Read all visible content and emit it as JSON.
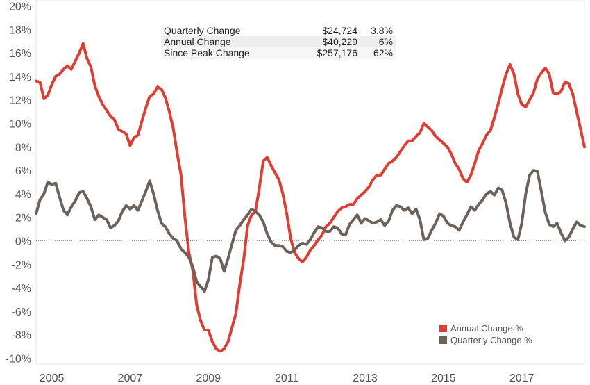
{
  "chart_data": {
    "type": "line",
    "title": "",
    "xlabel": "",
    "ylabel": "",
    "xlim": [
      2004.6,
      2018.6
    ],
    "ylim": [
      -10.5,
      20.5
    ],
    "x_ticks": [
      2005,
      2007,
      2009,
      2011,
      2013,
      2015,
      2017
    ],
    "x_tick_labels": [
      "2005",
      "2007",
      "2009",
      "2011",
      "2013",
      "2015",
      "2017"
    ],
    "y_ticks": [
      -10,
      -8,
      -6,
      -4,
      -2,
      0,
      2,
      4,
      6,
      8,
      10,
      12,
      14,
      16,
      18,
      20
    ],
    "y_tick_labels": [
      "-10%",
      "-8%",
      "-6%",
      "-4%",
      "-2%",
      "0%",
      "2%",
      "4%",
      "6%",
      "8%",
      "10%",
      "12%",
      "14%",
      "16%",
      "18%",
      "20%"
    ],
    "grid": false,
    "zero_line": true,
    "legend_position": "bottom-right",
    "summary_table": [
      {
        "label": "Quarterly Change",
        "value": "$24,724",
        "pct": "3.8%"
      },
      {
        "label": "Annual Change",
        "value": "$40,229",
        "pct": "6%"
      },
      {
        "label": "Since Peak Change",
        "value": "$257,176",
        "pct": "62%"
      }
    ],
    "series": [
      {
        "name": "Annual Change %",
        "color": "#e03c31",
        "points": [
          [
            2004.6,
            13.6
          ],
          [
            2004.7,
            13.5
          ],
          [
            2004.8,
            12.1
          ],
          [
            2004.9,
            12.4
          ],
          [
            2005.0,
            13.3
          ],
          [
            2005.1,
            14.0
          ],
          [
            2005.2,
            14.2
          ],
          [
            2005.3,
            14.6
          ],
          [
            2005.4,
            14.9
          ],
          [
            2005.5,
            14.6
          ],
          [
            2005.6,
            15.3
          ],
          [
            2005.7,
            16.0
          ],
          [
            2005.8,
            16.8
          ],
          [
            2005.9,
            15.5
          ],
          [
            2006.0,
            14.8
          ],
          [
            2006.1,
            13.2
          ],
          [
            2006.2,
            12.3
          ],
          [
            2006.3,
            11.6
          ],
          [
            2006.4,
            11.1
          ],
          [
            2006.5,
            10.6
          ],
          [
            2006.6,
            10.3
          ],
          [
            2006.7,
            9.5
          ],
          [
            2006.8,
            9.3
          ],
          [
            2006.9,
            9.1
          ],
          [
            2007.0,
            8.1
          ],
          [
            2007.1,
            8.8
          ],
          [
            2007.2,
            9.0
          ],
          [
            2007.3,
            10.2
          ],
          [
            2007.4,
            11.3
          ],
          [
            2007.5,
            12.3
          ],
          [
            2007.6,
            12.5
          ],
          [
            2007.7,
            13.1
          ],
          [
            2007.8,
            12.9
          ],
          [
            2007.9,
            12.2
          ],
          [
            2008.0,
            11.0
          ],
          [
            2008.1,
            9.6
          ],
          [
            2008.2,
            7.5
          ],
          [
            2008.3,
            5.6
          ],
          [
            2008.4,
            2.0
          ],
          [
            2008.5,
            -1.0
          ],
          [
            2008.6,
            -2.5
          ],
          [
            2008.7,
            -5.5
          ],
          [
            2008.8,
            -6.8
          ],
          [
            2008.9,
            -7.6
          ],
          [
            2009.0,
            -7.6
          ],
          [
            2009.1,
            -8.6
          ],
          [
            2009.2,
            -9.2
          ],
          [
            2009.3,
            -9.4
          ],
          [
            2009.4,
            -9.2
          ],
          [
            2009.5,
            -8.6
          ],
          [
            2009.6,
            -7.4
          ],
          [
            2009.7,
            -6.2
          ],
          [
            2009.8,
            -3.7
          ],
          [
            2009.9,
            -1.6
          ],
          [
            2010.0,
            1.3
          ],
          [
            2010.1,
            2.2
          ],
          [
            2010.2,
            2.5
          ],
          [
            2010.3,
            4.5
          ],
          [
            2010.4,
            6.8
          ],
          [
            2010.5,
            7.1
          ],
          [
            2010.6,
            6.4
          ],
          [
            2010.7,
            5.8
          ],
          [
            2010.8,
            5.2
          ],
          [
            2010.9,
            4.0
          ],
          [
            2011.0,
            2.3
          ],
          [
            2011.1,
            0.2
          ],
          [
            2011.2,
            -1.0
          ],
          [
            2011.3,
            -1.5
          ],
          [
            2011.4,
            -1.8
          ],
          [
            2011.5,
            -1.4
          ],
          [
            2011.6,
            -0.8
          ],
          [
            2011.7,
            -0.4
          ],
          [
            2011.8,
            0.1
          ],
          [
            2011.9,
            0.5
          ],
          [
            2012.0,
            1.2
          ],
          [
            2012.1,
            1.5
          ],
          [
            2012.2,
            2.0
          ],
          [
            2012.3,
            2.5
          ],
          [
            2012.4,
            2.8
          ],
          [
            2012.5,
            2.9
          ],
          [
            2012.6,
            3.1
          ],
          [
            2012.7,
            3.1
          ],
          [
            2012.8,
            3.6
          ],
          [
            2012.9,
            3.9
          ],
          [
            2013.0,
            4.2
          ],
          [
            2013.1,
            4.6
          ],
          [
            2013.2,
            5.2
          ],
          [
            2013.3,
            5.6
          ],
          [
            2013.4,
            5.6
          ],
          [
            2013.5,
            6.1
          ],
          [
            2013.6,
            6.6
          ],
          [
            2013.7,
            6.8
          ],
          [
            2013.8,
            7.1
          ],
          [
            2013.9,
            7.6
          ],
          [
            2014.0,
            8.1
          ],
          [
            2014.1,
            8.5
          ],
          [
            2014.2,
            8.5
          ],
          [
            2014.3,
            8.9
          ],
          [
            2014.4,
            9.2
          ],
          [
            2014.5,
            10.0
          ],
          [
            2014.6,
            9.7
          ],
          [
            2014.7,
            9.4
          ],
          [
            2014.8,
            8.9
          ],
          [
            2014.9,
            8.6
          ],
          [
            2015.0,
            8.3
          ],
          [
            2015.1,
            8.0
          ],
          [
            2015.2,
            7.4
          ],
          [
            2015.3,
            6.6
          ],
          [
            2015.4,
            6.1
          ],
          [
            2015.5,
            5.3
          ],
          [
            2015.6,
            5.0
          ],
          [
            2015.7,
            5.6
          ],
          [
            2015.8,
            6.6
          ],
          [
            2015.9,
            7.7
          ],
          [
            2016.0,
            8.3
          ],
          [
            2016.1,
            9.0
          ],
          [
            2016.2,
            9.4
          ],
          [
            2016.3,
            10.5
          ],
          [
            2016.4,
            11.7
          ],
          [
            2016.5,
            13.0
          ],
          [
            2016.6,
            14.2
          ],
          [
            2016.7,
            15.0
          ],
          [
            2016.8,
            14.2
          ],
          [
            2016.9,
            12.5
          ],
          [
            2017.0,
            11.6
          ],
          [
            2017.1,
            11.4
          ],
          [
            2017.2,
            12.0
          ],
          [
            2017.3,
            12.6
          ],
          [
            2017.4,
            13.8
          ],
          [
            2017.5,
            14.3
          ],
          [
            2017.6,
            14.7
          ],
          [
            2017.7,
            14.2
          ],
          [
            2017.8,
            12.6
          ],
          [
            2017.9,
            12.5
          ],
          [
            2018.0,
            12.7
          ],
          [
            2018.1,
            13.5
          ],
          [
            2018.2,
            13.4
          ],
          [
            2018.3,
            12.5
          ],
          [
            2018.4,
            11.0
          ],
          [
            2018.5,
            9.5
          ],
          [
            2018.6,
            8.0
          ]
        ]
      },
      {
        "name": "Quarterly Change %",
        "color": "#6b625c",
        "points": [
          [
            2004.6,
            2.3
          ],
          [
            2004.7,
            3.5
          ],
          [
            2004.8,
            4.0
          ],
          [
            2004.9,
            5.0
          ],
          [
            2005.0,
            4.8
          ],
          [
            2005.1,
            4.9
          ],
          [
            2005.2,
            3.7
          ],
          [
            2005.3,
            2.6
          ],
          [
            2005.4,
            2.2
          ],
          [
            2005.5,
            2.9
          ],
          [
            2005.6,
            3.4
          ],
          [
            2005.7,
            4.1
          ],
          [
            2005.8,
            4.2
          ],
          [
            2005.9,
            3.6
          ],
          [
            2006.0,
            2.9
          ],
          [
            2006.1,
            1.8
          ],
          [
            2006.2,
            2.2
          ],
          [
            2006.3,
            2.0
          ],
          [
            2006.4,
            1.8
          ],
          [
            2006.5,
            1.1
          ],
          [
            2006.6,
            1.3
          ],
          [
            2006.7,
            1.7
          ],
          [
            2006.8,
            2.5
          ],
          [
            2006.9,
            3.0
          ],
          [
            2007.0,
            2.7
          ],
          [
            2007.1,
            3.0
          ],
          [
            2007.2,
            2.6
          ],
          [
            2007.3,
            3.4
          ],
          [
            2007.4,
            4.2
          ],
          [
            2007.5,
            5.1
          ],
          [
            2007.6,
            4.0
          ],
          [
            2007.7,
            2.6
          ],
          [
            2007.8,
            1.5
          ],
          [
            2007.9,
            1.2
          ],
          [
            2008.0,
            0.6
          ],
          [
            2008.1,
            0.2
          ],
          [
            2008.2,
            0.0
          ],
          [
            2008.3,
            -0.7
          ],
          [
            2008.4,
            -1.0
          ],
          [
            2008.5,
            -1.4
          ],
          [
            2008.6,
            -2.2
          ],
          [
            2008.7,
            -3.5
          ],
          [
            2008.8,
            -3.9
          ],
          [
            2008.9,
            -4.3
          ],
          [
            2009.0,
            -3.3
          ],
          [
            2009.1,
            -1.4
          ],
          [
            2009.2,
            -1.3
          ],
          [
            2009.3,
            -1.5
          ],
          [
            2009.4,
            -2.6
          ],
          [
            2009.5,
            -1.5
          ],
          [
            2009.6,
            -0.3
          ],
          [
            2009.7,
            0.9
          ],
          [
            2009.8,
            1.3
          ],
          [
            2009.9,
            1.8
          ],
          [
            2010.0,
            2.2
          ],
          [
            2010.1,
            2.7
          ],
          [
            2010.2,
            2.5
          ],
          [
            2010.3,
            2.2
          ],
          [
            2010.4,
            1.6
          ],
          [
            2010.5,
            0.6
          ],
          [
            2010.6,
            -0.1
          ],
          [
            2010.7,
            -0.4
          ],
          [
            2010.8,
            -0.4
          ],
          [
            2010.9,
            -0.5
          ],
          [
            2011.0,
            -0.9
          ],
          [
            2011.1,
            -1.0
          ],
          [
            2011.2,
            -0.8
          ],
          [
            2011.3,
            -0.4
          ],
          [
            2011.4,
            -0.2
          ],
          [
            2011.5,
            -0.3
          ],
          [
            2011.6,
            0.1
          ],
          [
            2011.7,
            0.7
          ],
          [
            2011.8,
            1.2
          ],
          [
            2011.9,
            1.1
          ],
          [
            2012.0,
            0.8
          ],
          [
            2012.1,
            0.8
          ],
          [
            2012.2,
            1.2
          ],
          [
            2012.3,
            1.1
          ],
          [
            2012.4,
            0.6
          ],
          [
            2012.5,
            0.5
          ],
          [
            2012.6,
            1.4
          ],
          [
            2012.7,
            1.8
          ],
          [
            2012.8,
            2.2
          ],
          [
            2012.9,
            1.5
          ],
          [
            2013.0,
            1.9
          ],
          [
            2013.1,
            1.7
          ],
          [
            2013.2,
            1.5
          ],
          [
            2013.3,
            1.6
          ],
          [
            2013.4,
            1.8
          ],
          [
            2013.5,
            1.3
          ],
          [
            2013.6,
            1.7
          ],
          [
            2013.7,
            2.6
          ],
          [
            2013.8,
            3.0
          ],
          [
            2013.9,
            2.9
          ],
          [
            2014.0,
            2.6
          ],
          [
            2014.1,
            2.8
          ],
          [
            2014.2,
            2.3
          ],
          [
            2014.3,
            2.7
          ],
          [
            2014.4,
            1.8
          ],
          [
            2014.5,
            0.1
          ],
          [
            2014.6,
            0.2
          ],
          [
            2014.7,
            0.9
          ],
          [
            2014.8,
            1.5
          ],
          [
            2014.9,
            2.3
          ],
          [
            2015.0,
            2.1
          ],
          [
            2015.1,
            1.5
          ],
          [
            2015.2,
            1.3
          ],
          [
            2015.3,
            1.2
          ],
          [
            2015.4,
            0.9
          ],
          [
            2015.5,
            1.6
          ],
          [
            2015.6,
            2.2
          ],
          [
            2015.7,
            2.9
          ],
          [
            2015.8,
            2.6
          ],
          [
            2015.9,
            3.1
          ],
          [
            2016.0,
            3.5
          ],
          [
            2016.1,
            4.0
          ],
          [
            2016.2,
            4.2
          ],
          [
            2016.3,
            3.9
          ],
          [
            2016.4,
            4.5
          ],
          [
            2016.5,
            4.3
          ],
          [
            2016.6,
            3.2
          ],
          [
            2016.7,
            1.5
          ],
          [
            2016.8,
            0.3
          ],
          [
            2016.9,
            0.1
          ],
          [
            2017.0,
            1.5
          ],
          [
            2017.1,
            4.0
          ],
          [
            2017.2,
            5.6
          ],
          [
            2017.3,
            6.0
          ],
          [
            2017.4,
            5.9
          ],
          [
            2017.5,
            4.2
          ],
          [
            2017.6,
            2.4
          ],
          [
            2017.7,
            1.4
          ],
          [
            2017.8,
            1.2
          ],
          [
            2017.9,
            1.5
          ],
          [
            2018.0,
            0.7
          ],
          [
            2018.1,
            0.0
          ],
          [
            2018.2,
            0.3
          ],
          [
            2018.3,
            1.0
          ],
          [
            2018.4,
            1.6
          ],
          [
            2018.5,
            1.3
          ],
          [
            2018.6,
            1.2
          ]
        ]
      }
    ]
  }
}
